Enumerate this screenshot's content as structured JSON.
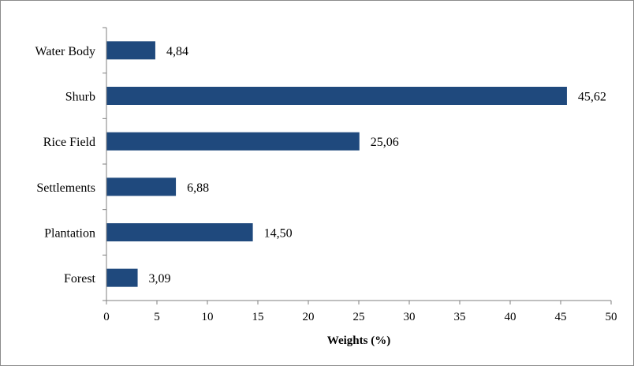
{
  "chart_data": {
    "type": "bar",
    "orientation": "horizontal",
    "categories": [
      "Forest",
      "Plantation",
      "Settlements",
      "Rice Field",
      "Shurb",
      "Water Body"
    ],
    "values": [
      3.09,
      14.5,
      6.88,
      25.06,
      45.62,
      4.84
    ],
    "value_labels": [
      "3,09",
      "14,50",
      "6,88",
      "25,06",
      "45,62",
      "4,84"
    ],
    "xlabel": "Weights (%)",
    "ylabel": "",
    "title": "",
    "xlim": [
      0,
      50
    ],
    "xticks": [
      0,
      5,
      10,
      15,
      20,
      25,
      30,
      35,
      40,
      45,
      50
    ],
    "grid": false,
    "legend": "none",
    "bar_color": "#1f497d"
  }
}
